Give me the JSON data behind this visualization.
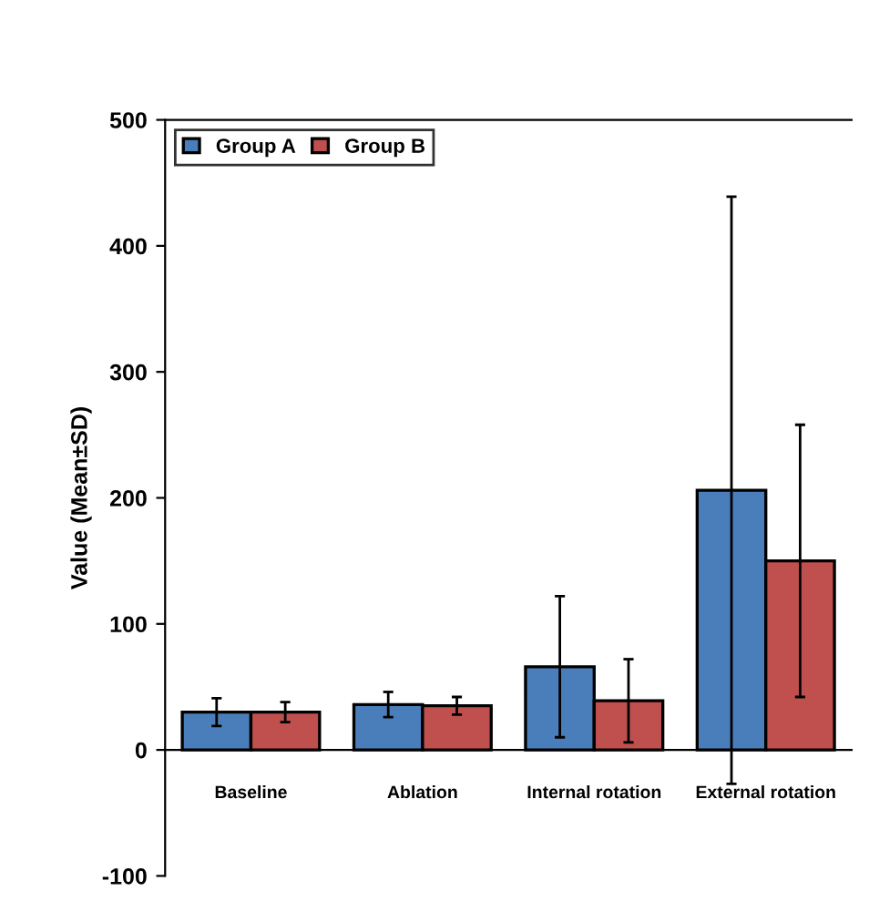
{
  "chart_data": {
    "type": "bar",
    "categories": [
      "Baseline",
      "Ablation",
      "Internal rotation",
      "External rotation"
    ],
    "series": [
      {
        "name": "Group A",
        "color": "#4a7ebb",
        "values": [
          30,
          36,
          66,
          206
        ],
        "errors": [
          11,
          10,
          56,
          233
        ]
      },
      {
        "name": "Group B",
        "color": "#c0504d",
        "values": [
          30,
          35,
          39,
          150
        ],
        "errors": [
          8,
          7,
          33,
          108
        ]
      }
    ],
    "ylabel": "Value (Mean±SD)",
    "ylim": [
      -100,
      500
    ],
    "yticks": [
      -100,
      0,
      100,
      200,
      300,
      400,
      500
    ],
    "legend": "top left",
    "grid": false
  }
}
